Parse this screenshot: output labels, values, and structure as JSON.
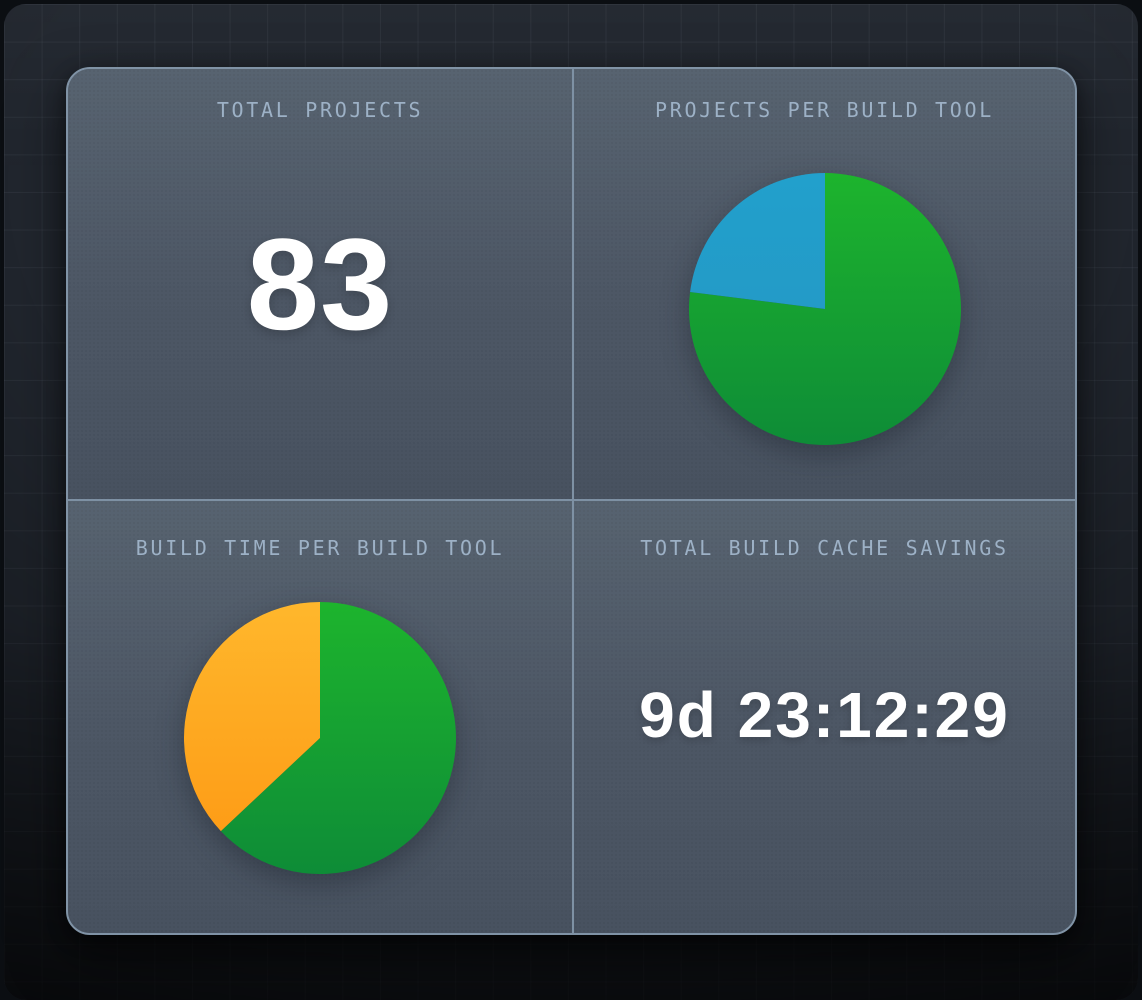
{
  "panels": {
    "total_projects": {
      "title": "TOTAL PROJECTS",
      "value": "83"
    },
    "projects_per_build_tool": {
      "title": "PROJECTS PER BUILD TOOL"
    },
    "build_time_per_build_tool": {
      "title": "BUILD TIME PER BUILD TOOL"
    },
    "total_build_cache_savings": {
      "title": "TOTAL BUILD CACHE SAVINGS",
      "value": "9d 23:12:29"
    }
  },
  "colors": {
    "card_background": "#4d5765",
    "card_border": "#8093a6",
    "panel_divider": "#7e91a4",
    "title_text": "#9db1c6",
    "value_text": "#ffffff",
    "backdrop": "#21262e",
    "pie_green": "#12a032",
    "pie_blue": "#2299c6",
    "pie_orange": "#fea81f"
  },
  "chart_data": [
    {
      "type": "pie",
      "title": "PROJECTS PER BUILD TOOL",
      "values_unit": "percent",
      "legend_position": "none",
      "start_angle_deg": 0,
      "direction": "clockwise",
      "series": [
        {
          "name": "green-slice",
          "value": 77,
          "color_top": "#1db42d",
          "color_bottom": "#0e8c37"
        },
        {
          "name": "blue-slice",
          "value": 23,
          "color_top": "#22a0cc",
          "color_bottom": "#2495c2"
        }
      ]
    },
    {
      "type": "pie",
      "title": "BUILD TIME PER BUILD TOOL",
      "values_unit": "percent",
      "legend_position": "none",
      "start_angle_deg": 0,
      "direction": "clockwise",
      "series": [
        {
          "name": "green-slice",
          "value": 63,
          "color_top": "#1db42d",
          "color_bottom": "#0e8c37"
        },
        {
          "name": "orange-slice",
          "value": 37,
          "color_top": "#ffb72c",
          "color_bottom": "#fd9813"
        }
      ]
    }
  ]
}
